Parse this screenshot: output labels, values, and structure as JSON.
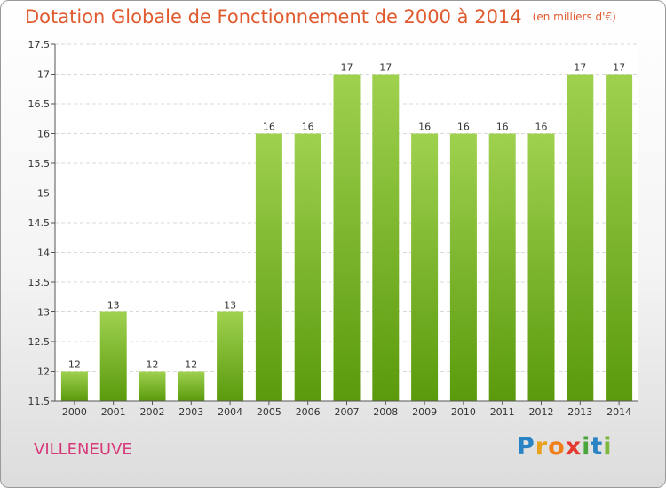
{
  "chart_data": {
    "type": "bar",
    "title": "Dotation Globale de Fonctionnement de 2000 à 2014",
    "subtitle": "(en milliers d'€)",
    "categories": [
      "2000",
      "2001",
      "2002",
      "2003",
      "2004",
      "2005",
      "2006",
      "2007",
      "2008",
      "2009",
      "2010",
      "2011",
      "2012",
      "2013",
      "2014"
    ],
    "values": [
      12,
      13,
      12,
      12,
      13,
      16,
      16,
      17,
      17,
      16,
      16,
      16,
      16,
      17,
      17
    ],
    "ylim": [
      11.5,
      17.5
    ],
    "yticks": [
      11.5,
      12,
      12.5,
      13,
      13.5,
      14,
      14.5,
      15,
      15.5,
      16,
      16.5,
      17,
      17.5
    ],
    "ytick_labels": [
      "11.5",
      "12",
      "12.5",
      "13",
      "13.5",
      "14",
      "14.5",
      "15",
      "15.5",
      "16",
      "16.5",
      "17",
      "17.5"
    ],
    "grid": true,
    "xlabel": "",
    "ylabel": ""
  },
  "place_name": "VILLENEUVE",
  "logo": {
    "letters": [
      "P",
      "r",
      "o",
      "x",
      "i",
      "t",
      "i"
    ]
  },
  "colors": {
    "title": "#e05a2f",
    "bar_top": "#9fd14f",
    "bar_bottom": "#5a9a0c",
    "place": "#d63a7a",
    "grid": "#d8d8d8"
  }
}
